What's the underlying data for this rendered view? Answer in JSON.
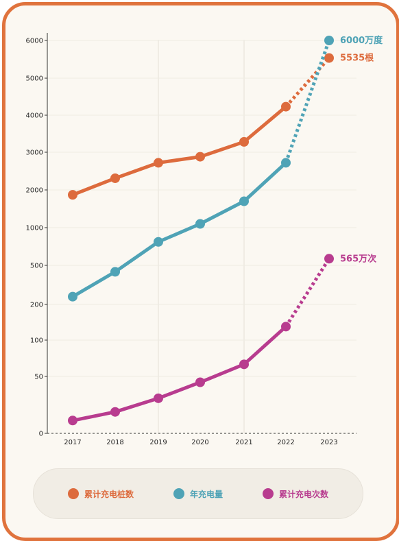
{
  "chart_data": {
    "type": "line",
    "title": "",
    "xlabel": "",
    "ylabel": "",
    "x": [
      "2017",
      "2018",
      "2019",
      "2020",
      "2021",
      "2022",
      "2023"
    ],
    "yticks": [
      {
        "value": 6000,
        "label": "6000"
      },
      {
        "value": 5000,
        "label": "5000"
      },
      {
        "value": 4000,
        "label": "4000"
      },
      {
        "value": 3000,
        "label": "3000"
      },
      {
        "value": 2000,
        "label": "2000"
      },
      {
        "value": 1000,
        "label": "1000"
      },
      {
        "value": 500,
        "label": "500"
      },
      {
        "value": 200,
        "label": "200"
      },
      {
        "value": 100,
        "label": "100"
      },
      {
        "value": 50,
        "label": "50"
      },
      {
        "value": 0,
        "label": "0"
      }
    ],
    "y_scale": "piecewise (compressed below 1000)",
    "grid": "vertical lines at 2019 and 2021",
    "legend_position": "bottom",
    "series": [
      {
        "name": "累计充电桩数",
        "color": "#dd6b3d",
        "values": [
          1870,
          2310,
          2720,
          2880,
          3280,
          4230,
          5535
        ],
        "projected_from_index": 5,
        "end_label": "5535根"
      },
      {
        "name": "年充电量",
        "color": "#4fa3b6",
        "values": [
          240,
          430,
          770,
          1100,
          1700,
          2720,
          6000
        ],
        "projected_from_index": 5,
        "end_label": "6000万度"
      },
      {
        "name": "累计充电次数",
        "color": "#b83c8f",
        "values": [
          17,
          23,
          31,
          44,
          63,
          130,
          565
        ],
        "projected_from_index": 5,
        "end_label": "565万次"
      }
    ]
  }
}
